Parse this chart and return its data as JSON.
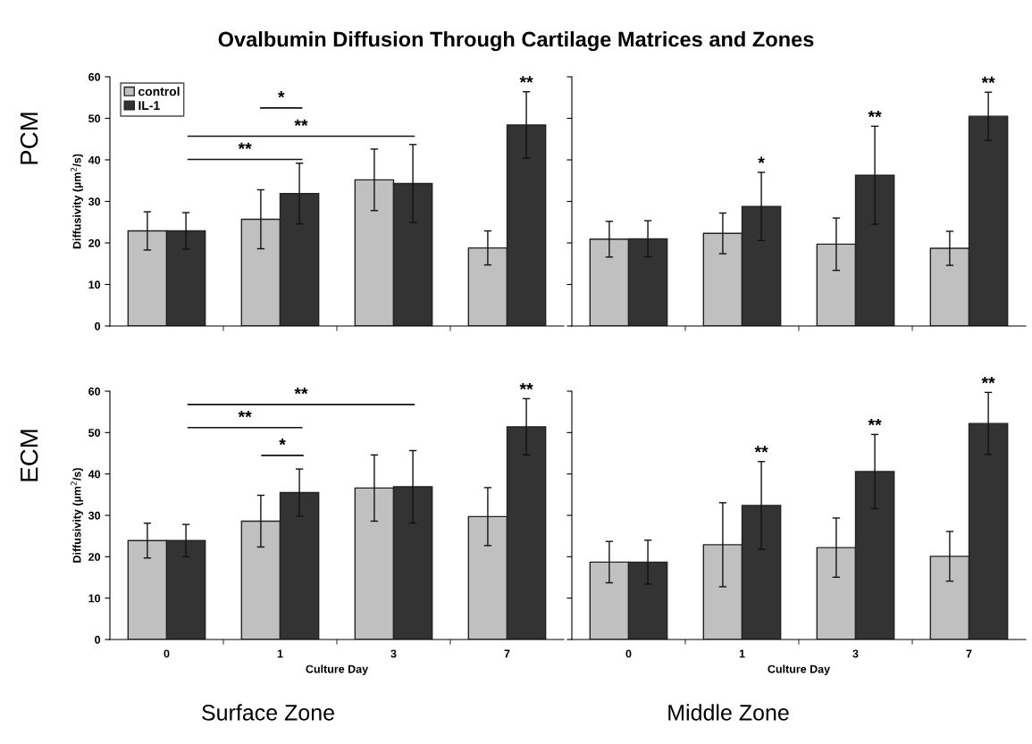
{
  "chart_data": [
    {
      "type": "bar",
      "title": "Ovalbumin Diffusion Through Cartilage Matrices and Zones",
      "ylabel": "Diffusivity (µm$^{2}$/s)",
      "categories": [
        "0",
        "1",
        "3",
        "7"
      ],
      "ylim": [
        0,
        60
      ],
      "yticks": [
        0,
        10,
        20,
        30,
        40,
        50,
        60
      ],
      "tick_labels": "y",
      "legend": "top left",
      "series": [
        {
          "name": "control",
          "color": "#c0c0c0",
          "values": [
            22.9,
            25.7,
            35.2,
            18.8
          ],
          "errors": [
            4.6,
            7.1,
            7.4,
            4.1
          ]
        },
        {
          "name": "IL-1",
          "color": "#333333",
          "values": [
            22.9,
            31.9,
            34.3,
            48.4
          ],
          "errors": [
            4.4,
            7.3,
            9.4,
            8
          ]
        }
      ],
      "annotations": [
        "PCM",
        "*",
        "**",
        "**",
        "**"
      ]
    },
    {
      "type": "bar",
      "categories": [
        "0",
        "1",
        "3",
        "7"
      ],
      "ylim": [
        0,
        60
      ],
      "yticks": [
        0,
        10,
        20,
        30,
        40,
        50,
        60
      ],
      "tick_labels": false,
      "series": [
        {
          "color": "#c0c0c0",
          "values": [
            20.9,
            22.3,
            19.7,
            18.7
          ],
          "errors": [
            4.3,
            4.9,
            6.3,
            4.1
          ]
        },
        {
          "color": "#333333",
          "values": [
            21,
            28.8,
            36.3,
            50.5
          ],
          "errors": [
            4.35,
            8.2,
            11.8,
            5.8
          ]
        }
      ],
      "annotations": [
        "*",
        "**",
        "**"
      ]
    },
    {
      "type": "bar",
      "ylabel": "Diffusivity (µm$^{2}$/s)",
      "xlabel": "Culture Day",
      "categories": [
        "0",
        "1",
        "3",
        "7"
      ],
      "ylim": [
        0,
        60
      ],
      "yticks": [
        0,
        10,
        20,
        30,
        40,
        50,
        60
      ],
      "series": [
        {
          "color": "#c0c0c0",
          "values": [
            23.9,
            28.6,
            36.6,
            29.7
          ],
          "errors": [
            4.2,
            6.25,
            8,
            7
          ]
        },
        {
          "color": "#333333",
          "values": [
            23.9,
            35.5,
            36.9,
            51.4
          ],
          "errors": [
            3.9,
            5.7,
            8.75,
            6.8
          ]
        }
      ],
      "annotations": [
        "ECM",
        "Surface Zone",
        "**",
        "**",
        "*",
        "**"
      ]
    },
    {
      "type": "bar",
      "xlabel": "Culture Day",
      "categories": [
        "0",
        "1",
        "3",
        "7"
      ],
      "ylim": [
        0,
        60
      ],
      "yticks": [
        0,
        10,
        20,
        30,
        40,
        50,
        60
      ],
      "tick_labels": "x",
      "series": [
        {
          "color": "#c0c0c0",
          "values": [
            18.7,
            22.9,
            22.2,
            20.1
          ],
          "errors": [
            5,
            10.15,
            7.15,
            6
          ]
        },
        {
          "color": "#333333",
          "values": [
            18.7,
            32.4,
            40.6,
            52.2
          ],
          "errors": [
            5.3,
            10.6,
            8.95,
            7.5
          ]
        }
      ],
      "annotations": [
        "Middle Zone",
        "**",
        "**",
        "**"
      ]
    }
  ]
}
